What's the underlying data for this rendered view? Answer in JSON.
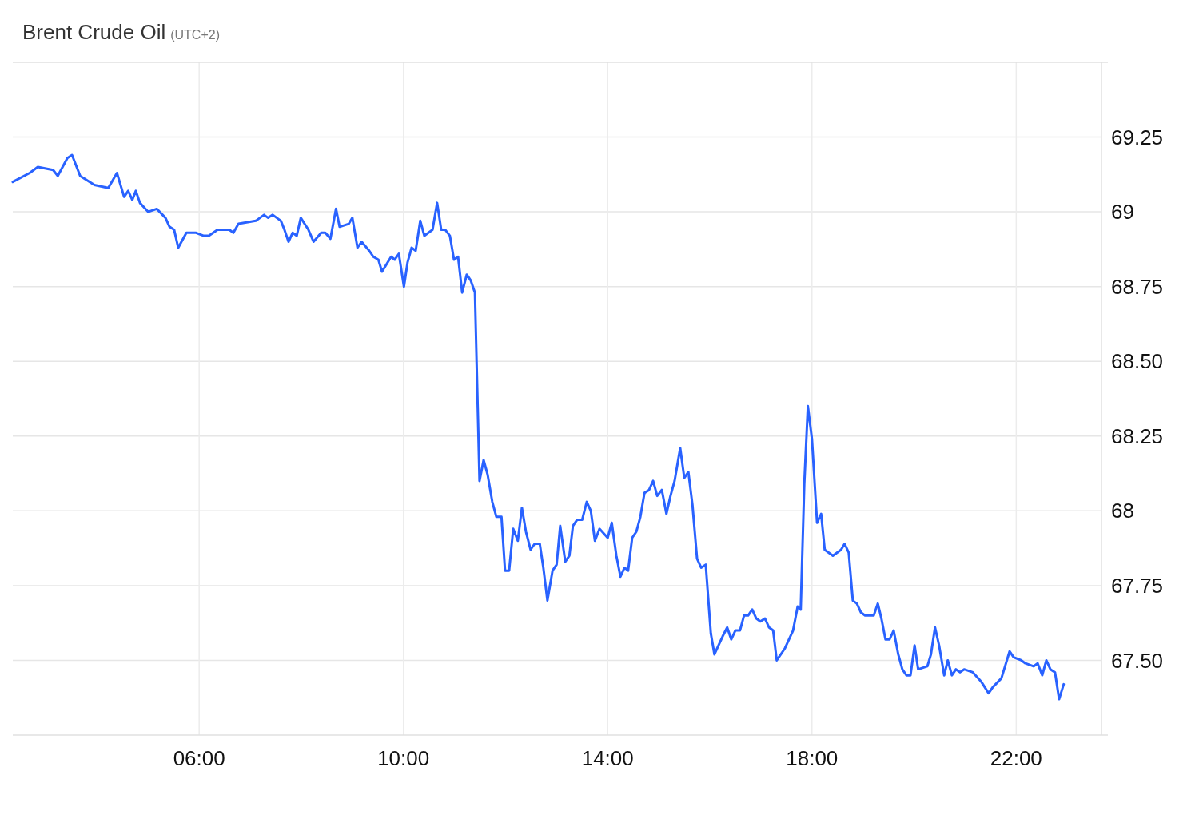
{
  "chart_data": {
    "type": "line",
    "title": "Brent Crude Oil",
    "subtitle": "(UTC+2)",
    "x": [
      2.35,
      2.68,
      2.84,
      3.14,
      3.23,
      3.42,
      3.51,
      3.67,
      3.95,
      4.22,
      4.39,
      4.53,
      4.61,
      4.69,
      4.76,
      4.84,
      5.0,
      5.17,
      5.34,
      5.42,
      5.51,
      5.59,
      5.75,
      5.94,
      6.09,
      6.19,
      6.36,
      6.59,
      6.67,
      6.77,
      7.11,
      7.27,
      7.35,
      7.44,
      7.6,
      7.67,
      7.75,
      7.83,
      7.91,
      7.99,
      8.14,
      8.24,
      8.39,
      8.47,
      8.57,
      8.68,
      8.75,
      8.93,
      9.0,
      9.1,
      9.18,
      9.33,
      9.41,
      9.51,
      9.58,
      9.76,
      9.83,
      9.91,
      10.01,
      10.08,
      10.16,
      10.24,
      10.33,
      10.41,
      10.57,
      10.66,
      10.74,
      10.82,
      10.91,
      10.99,
      11.07,
      11.15,
      11.24,
      11.32,
      11.4,
      11.49,
      11.57,
      11.65,
      11.74,
      11.82,
      11.92,
      11.99,
      12.07,
      12.15,
      12.24,
      12.32,
      12.4,
      12.49,
      12.57,
      12.67,
      12.74,
      12.82,
      12.92,
      13.0,
      13.07,
      13.17,
      13.25,
      13.32,
      13.4,
      13.5,
      13.59,
      13.67,
      13.75,
      13.84,
      14.0,
      14.08,
      14.17,
      14.25,
      14.33,
      14.4,
      14.48,
      14.56,
      14.64,
      14.72,
      14.81,
      14.89,
      14.97,
      15.06,
      15.15,
      15.23,
      15.31,
      15.42,
      15.5,
      15.58,
      15.66,
      15.75,
      15.83,
      15.92,
      16.02,
      16.09,
      16.25,
      16.34,
      16.42,
      16.5,
      16.59,
      16.67,
      16.75,
      16.83,
      16.91,
      16.99,
      17.08,
      17.16,
      17.24,
      17.31,
      17.47,
      17.63,
      17.72,
      17.78,
      17.85,
      17.92,
      18.0,
      18.1,
      18.18,
      18.25,
      18.41,
      18.57,
      18.64,
      18.72,
      18.8,
      18.88,
      18.96,
      19.04,
      19.21,
      19.29,
      19.36,
      19.44,
      19.52,
      19.6,
      19.69,
      19.77,
      19.85,
      19.93,
      20.01,
      20.08,
      20.26,
      20.33,
      20.41,
      20.49,
      20.59,
      20.66,
      20.74,
      20.82,
      20.9,
      20.98,
      21.15,
      21.31,
      21.46,
      21.54,
      21.71,
      21.87,
      21.95,
      22.1,
      22.18,
      22.34,
      22.42,
      22.51,
      22.59,
      22.67,
      22.76,
      22.84,
      22.93
    ],
    "series": [
      {
        "color": "#2962ff",
        "values": [
          69.1,
          69.13,
          69.15,
          69.14,
          69.12,
          69.18,
          69.19,
          69.12,
          69.09,
          69.08,
          69.13,
          69.05,
          69.07,
          69.04,
          69.07,
          69.03,
          69.0,
          69.01,
          68.98,
          68.95,
          68.94,
          68.88,
          68.93,
          68.93,
          68.92,
          68.92,
          68.94,
          68.94,
          68.93,
          68.96,
          68.97,
          68.99,
          68.98,
          68.99,
          68.97,
          68.94,
          68.9,
          68.93,
          68.92,
          68.98,
          68.94,
          68.9,
          68.93,
          68.93,
          68.91,
          69.01,
          68.95,
          68.96,
          68.98,
          68.88,
          68.9,
          68.87,
          68.85,
          68.84,
          68.8,
          68.85,
          68.84,
          68.86,
          68.75,
          68.83,
          68.88,
          68.87,
          68.97,
          68.92,
          68.94,
          69.03,
          68.94,
          68.94,
          68.92,
          68.84,
          68.85,
          68.73,
          68.79,
          68.77,
          68.73,
          68.1,
          68.17,
          68.12,
          68.03,
          67.98,
          67.98,
          67.8,
          67.8,
          67.94,
          67.9,
          68.01,
          67.93,
          67.87,
          67.89,
          67.89,
          67.81,
          67.7,
          67.8,
          67.82,
          67.95,
          67.83,
          67.85,
          67.95,
          67.97,
          67.97,
          68.03,
          68.0,
          67.9,
          67.94,
          67.91,
          67.96,
          67.85,
          67.78,
          67.81,
          67.8,
          67.91,
          67.93,
          67.98,
          68.06,
          68.07,
          68.1,
          68.05,
          68.07,
          67.99,
          68.05,
          68.1,
          68.21,
          68.11,
          68.13,
          68.02,
          67.84,
          67.81,
          67.82,
          67.59,
          67.52,
          67.58,
          67.61,
          67.57,
          67.6,
          67.6,
          67.65,
          67.65,
          67.67,
          67.64,
          67.63,
          67.64,
          67.61,
          67.6,
          67.5,
          67.54,
          67.6,
          67.68,
          67.67,
          68.09,
          68.35,
          68.24,
          67.96,
          67.99,
          67.87,
          67.85,
          67.87,
          67.89,
          67.86,
          67.7,
          67.69,
          67.66,
          67.65,
          67.65,
          67.69,
          67.64,
          67.57,
          67.57,
          67.6,
          67.52,
          67.47,
          67.45,
          67.45,
          67.55,
          67.47,
          67.48,
          67.52,
          67.61,
          67.55,
          67.45,
          67.5,
          67.45,
          67.47,
          67.46,
          67.47,
          67.46,
          67.43,
          67.39,
          67.41,
          67.44,
          67.53,
          67.51,
          67.5,
          67.49,
          67.48,
          67.49,
          67.45,
          67.5,
          67.47,
          67.46,
          67.37,
          67.42
        ]
      }
    ],
    "xlim": [
      2.35,
      23.67
    ],
    "xticks": [
      {
        "value": 6,
        "label": "06:00"
      },
      {
        "value": 10,
        "label": "10:00"
      },
      {
        "value": 14,
        "label": "14:00"
      },
      {
        "value": 18,
        "label": "18:00"
      },
      {
        "value": 22,
        "label": "22:00"
      }
    ],
    "ylim": [
      67.25,
      69.5
    ],
    "yticks": [
      {
        "value": 67.5,
        "label": "67.50"
      },
      67.75,
      68,
      68.25,
      {
        "value": 68.5,
        "label": "68.50"
      },
      68.75,
      69,
      69.25
    ],
    "grid": true,
    "line_style": "solid",
    "marker": "none"
  }
}
